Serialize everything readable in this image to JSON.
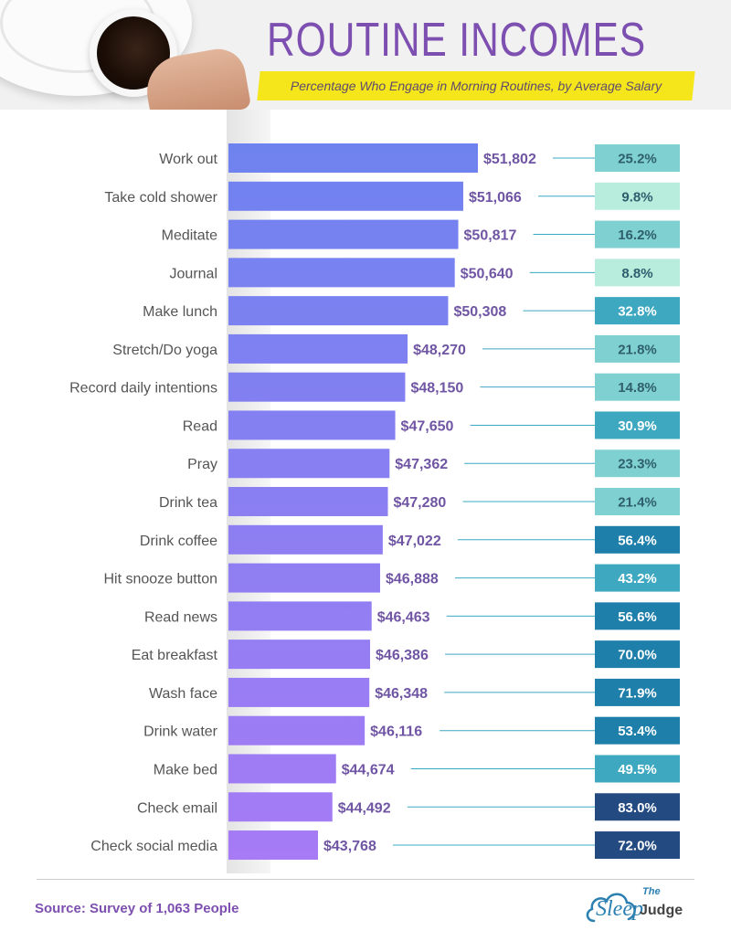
{
  "chart_data": {
    "type": "bar",
    "orientation": "horizontal",
    "title": "ROUTINE INCOMES",
    "subtitle": "Percentage Who Engage in Morning Routines, by Average Salary",
    "value_label": "Average Salary",
    "percent_label": "Percentage Who Engage",
    "categories": [
      "Work out",
      "Take cold shower",
      "Meditate",
      "Journal",
      "Make lunch",
      "Stretch/Do yoga",
      "Record daily intentions",
      "Read",
      "Pray",
      "Drink tea",
      "Drink coffee",
      "Hit snooze button",
      "Read news",
      "Eat breakfast",
      "Wash face",
      "Drink water",
      "Make bed",
      "Check email",
      "Check social media"
    ],
    "values": [
      51802,
      51066,
      50817,
      50640,
      50308,
      48270,
      48150,
      47650,
      47362,
      47280,
      47022,
      46888,
      46463,
      46386,
      46348,
      46116,
      44674,
      44492,
      43768
    ],
    "value_labels": [
      "$51,802",
      "$51,066",
      "$50,817",
      "$50,640",
      "$50,308",
      "$48,270",
      "$48,150",
      "$47,650",
      "$47,362",
      "$47,280",
      "$47,022",
      "$46,888",
      "$46,463",
      "$46,386",
      "$46,348",
      "$46,116",
      "$44,674",
      "$44,492",
      "$43,768"
    ],
    "percentages": [
      25.2,
      9.8,
      16.2,
      8.8,
      32.8,
      21.8,
      14.8,
      30.9,
      23.3,
      21.4,
      56.4,
      43.2,
      56.6,
      70.0,
      71.9,
      53.4,
      49.5,
      83.0,
      72.0
    ],
    "percentage_labels": [
      "25.2%",
      "9.8%",
      "16.2%",
      "8.8%",
      "32.8%",
      "21.8%",
      "14.8%",
      "30.9%",
      "23.3%",
      "21.4%",
      "56.4%",
      "43.2%",
      "56.6%",
      "70.0%",
      "71.9%",
      "53.4%",
      "49.5%",
      "83.0%",
      "72.0%"
    ],
    "xlim": [
      40000,
      52000
    ],
    "colors": {
      "bar_top": "#6e83ef",
      "bar_bottom": "#a67bf5",
      "value_text": "#6f55a3",
      "connector": "#3aa8c2",
      "pct_scale": [
        "#b8ecdc",
        "#7fd0d0",
        "#3ea8c0",
        "#1e7fab",
        "#234b82"
      ]
    }
  },
  "source": "Source: Survey of 1,063 People",
  "logo": {
    "the": "The",
    "sleep": "Sleep",
    "judge": "Judge"
  }
}
